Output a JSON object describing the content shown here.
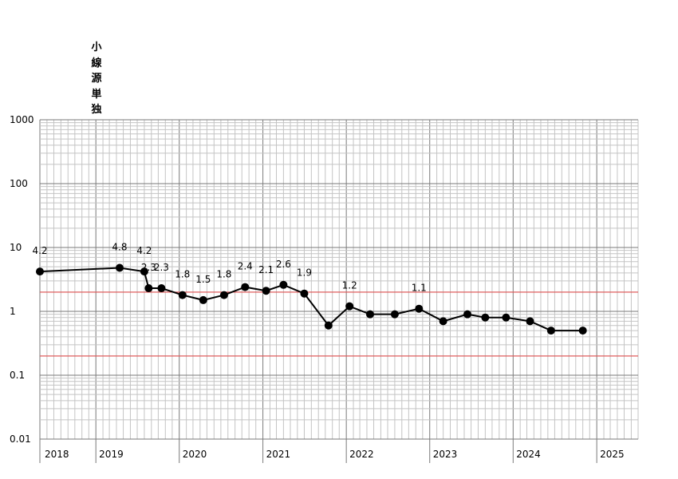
{
  "chart_data": {
    "type": "line",
    "title": "小線源単独",
    "xlabel": "",
    "ylabel": "",
    "yscale": "log",
    "ylim": [
      0.01,
      1000
    ],
    "ytick_labels": [
      "1000",
      "100",
      "10",
      "1",
      "0.1",
      "0.01"
    ],
    "xlim": [
      "2018-05-01",
      "2025-07-01"
    ],
    "xtick_labels": [
      "2018",
      "2019",
      "2020",
      "2021",
      "2022",
      "2023",
      "2024",
      "2025"
    ],
    "grid": true,
    "reference_lines": [
      2,
      0.2
    ],
    "reference_line_color": "#e05050",
    "line_color": "#000000",
    "series": [
      {
        "x": [
          "2018-05-01",
          "2019-04-15",
          "2019-08-01",
          "2019-08-20",
          "2019-10-15",
          "2020-01-15",
          "2020-04-15",
          "2020-07-15",
          "2020-10-15",
          "2021-01-15",
          "2021-04-01",
          "2021-07-01",
          "2021-10-15",
          "2022-01-15",
          "2022-04-15",
          "2022-08-01",
          "2022-11-15",
          "2023-03-01",
          "2023-06-15",
          "2023-09-01",
          "2023-12-01",
          "2024-03-15",
          "2024-06-15",
          "2024-11-01"
        ],
        "values": [
          4.2,
          4.8,
          4.2,
          2.3,
          2.3,
          1.8,
          1.5,
          1.8,
          2.4,
          2.1,
          2.6,
          1.9,
          0.6,
          1.2,
          0.9,
          0.9,
          1.1,
          0.7,
          0.9,
          0.8,
          0.8,
          0.7,
          0.5,
          0.5
        ],
        "labels": [
          "4.2",
          "4.8",
          "4.2",
          "2.3",
          "2.3",
          "1.8",
          "1.5",
          "1.8",
          "2.4",
          "2.1",
          "2.6",
          "1.9",
          "",
          "1.2",
          "",
          "",
          "1.1",
          "",
          "",
          "",
          "",
          "",
          "",
          ""
        ]
      }
    ]
  }
}
